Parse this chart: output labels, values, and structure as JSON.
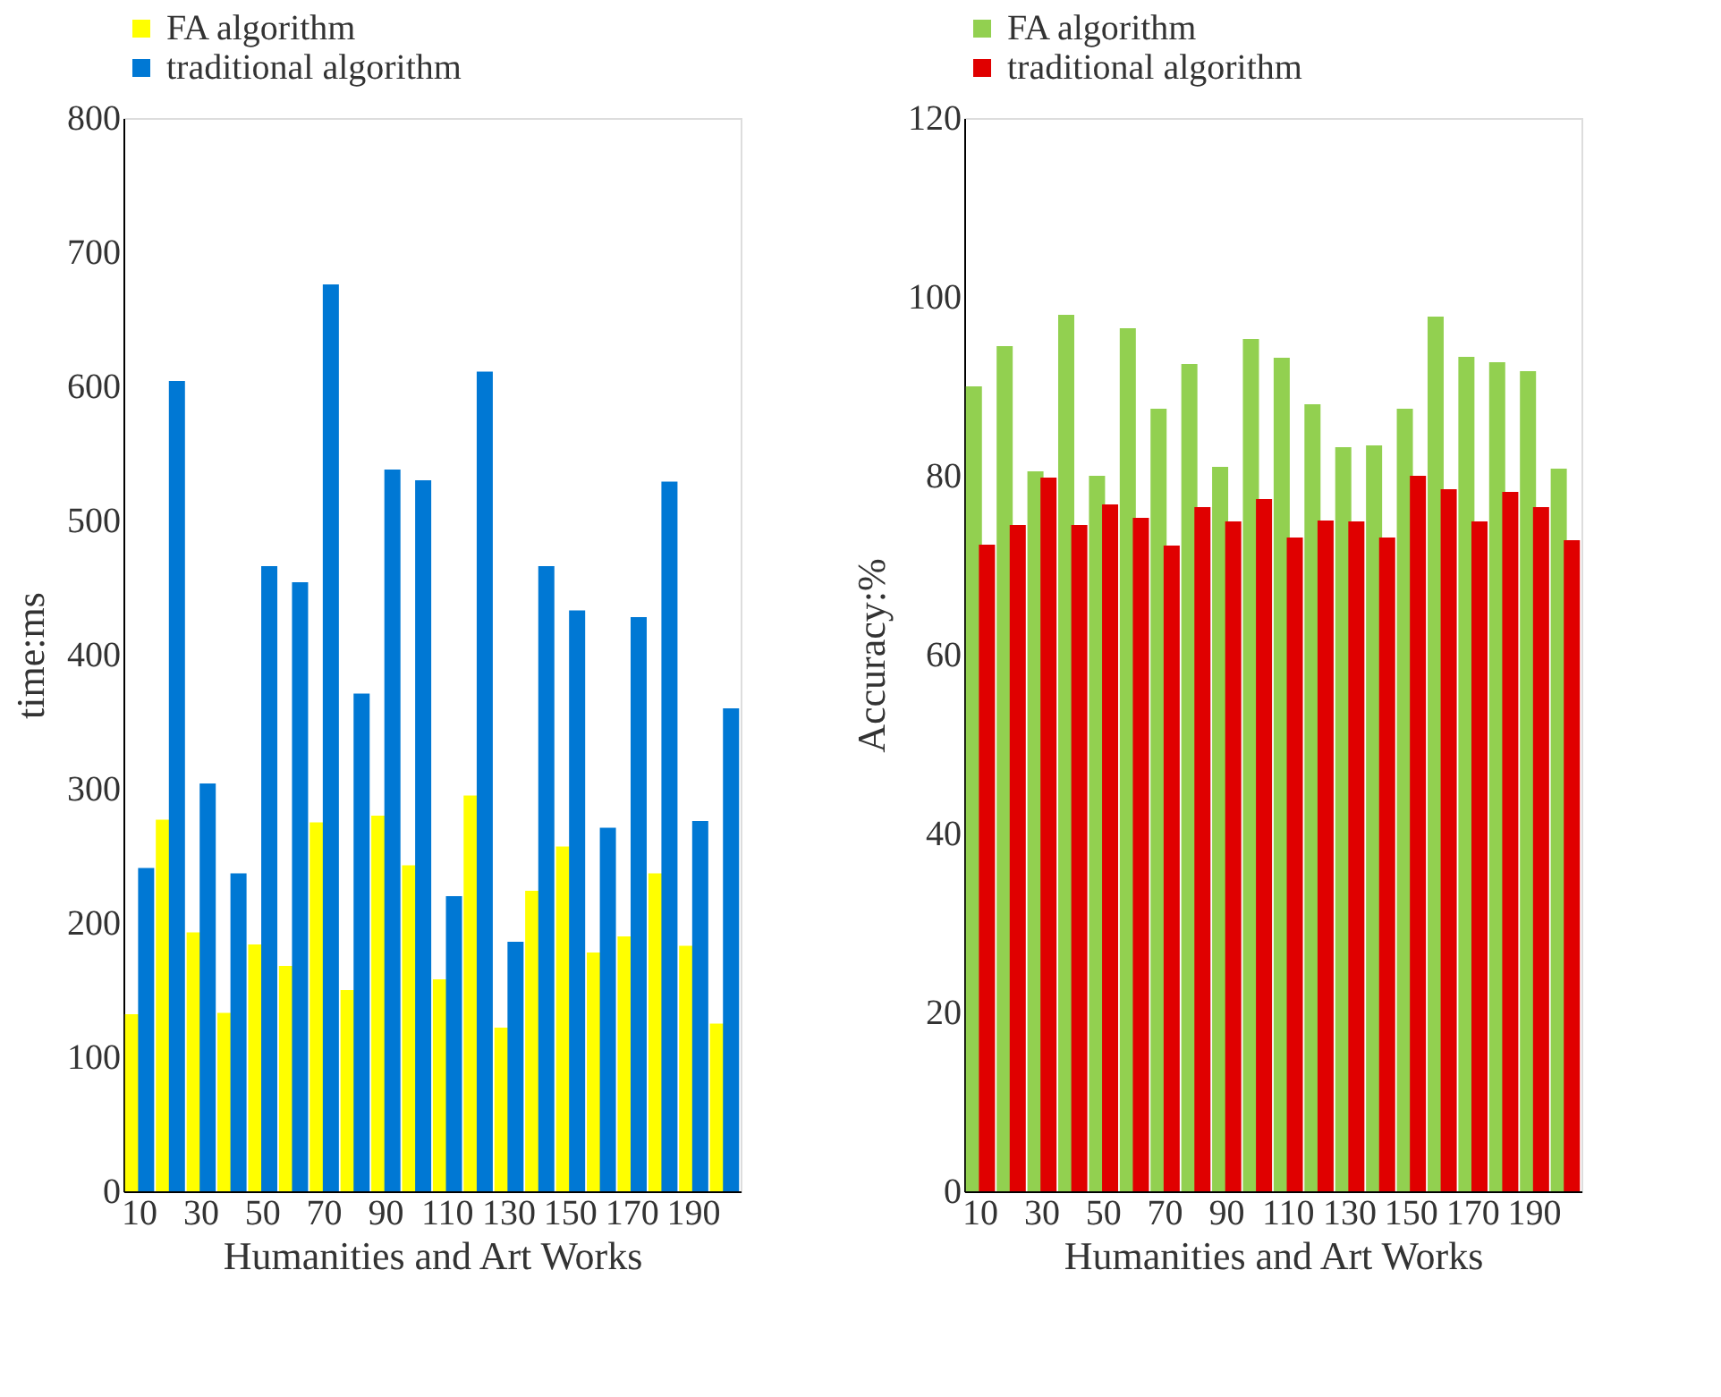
{
  "chart_data": [
    {
      "type": "bar",
      "xlabel": "Humanities and Art Works",
      "ylabel": "time:ms",
      "categories": [
        "10",
        null,
        "30",
        null,
        "50",
        null,
        "70",
        null,
        "90",
        null,
        "110",
        null,
        "130",
        null,
        "150",
        null,
        "170",
        null,
        "190",
        null
      ],
      "series": [
        {
          "name": "FA algorithm",
          "color": "#ffff00",
          "values": [
            132,
            277,
            193,
            133,
            184,
            168,
            275,
            150,
            280,
            243,
            158,
            295,
            122,
            224,
            257,
            178,
            190,
            237,
            183,
            125
          ]
        },
        {
          "name": "traditional algorithm",
          "color": "#0078d4",
          "values": [
            241,
            604,
            304,
            237,
            466,
            454,
            676,
            371,
            538,
            530,
            220,
            611,
            186,
            466,
            433,
            271,
            428,
            529,
            276,
            360
          ]
        }
      ],
      "ylim": [
        0,
        800
      ],
      "yticks": [
        0,
        100,
        200,
        300,
        400,
        500,
        600,
        700,
        800
      ],
      "legend": "top",
      "grid": false
    },
    {
      "type": "bar",
      "xlabel": "Humanities and Art Works",
      "ylabel": "Accuracy:%",
      "categories": [
        "10",
        null,
        "30",
        null,
        "50",
        null,
        "70",
        null,
        "90",
        null,
        "110",
        null,
        "130",
        null,
        "150",
        null,
        "170",
        null,
        "190",
        null
      ],
      "series": [
        {
          "name": "FA algorithm",
          "color": "#92d050",
          "values": [
            90,
            94.5,
            80.5,
            98,
            80,
            96.5,
            87.5,
            92.5,
            81,
            95.3,
            93.2,
            88,
            83.2,
            83.4,
            87.5,
            97.8,
            93.3,
            92.7,
            91.7,
            80.8
          ]
        },
        {
          "name": "traditional algorithm",
          "color": "#e00000",
          "values": [
            72.3,
            74.5,
            79.8,
            74.5,
            76.8,
            75.3,
            72.2,
            76.5,
            74.9,
            77.4,
            73.1,
            75,
            74.9,
            73.1,
            80,
            78.5,
            74.9,
            78.2,
            76.5,
            72.8
          ]
        }
      ],
      "ylim": [
        0,
        120
      ],
      "yticks": [
        0,
        20,
        40,
        60,
        80,
        100,
        120
      ],
      "legend": "top",
      "grid": false
    }
  ]
}
